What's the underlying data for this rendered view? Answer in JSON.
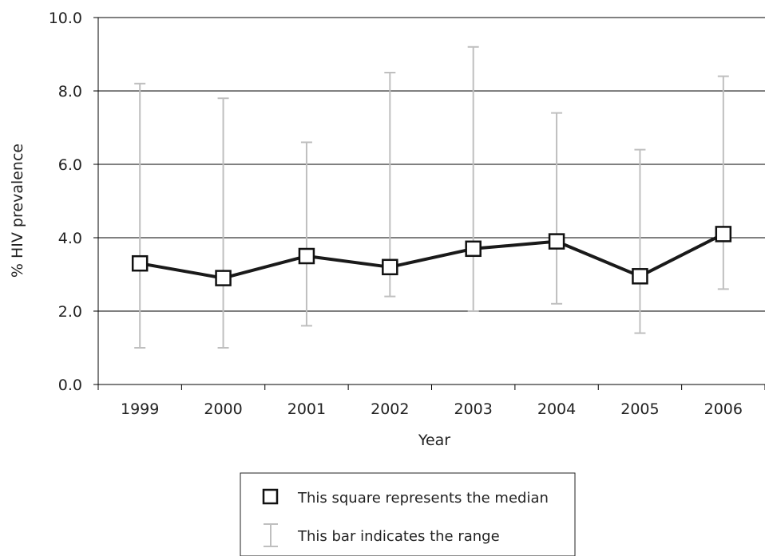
{
  "chart_data": {
    "type": "line",
    "title": "",
    "xlabel": "Year",
    "ylabel": "% HIV prevalence",
    "categories": [
      "1999",
      "2000",
      "2001",
      "2002",
      "2003",
      "2004",
      "2005",
      "2006"
    ],
    "y_ticks": [
      "0.0",
      "2.0",
      "4.0",
      "6.0",
      "8.0",
      "10.0"
    ],
    "ylim": [
      0,
      10
    ],
    "grid": "horizontal",
    "series": [
      {
        "name": "median",
        "values": [
          3.3,
          2.9,
          3.5,
          3.2,
          3.7,
          3.9,
          2.95,
          4.1
        ],
        "range_min": [
          1.0,
          1.0,
          1.6,
          2.4,
          2.0,
          2.2,
          1.4,
          2.6
        ],
        "range_max": [
          8.2,
          7.8,
          6.6,
          8.5,
          9.2,
          7.4,
          6.4,
          8.4
        ]
      }
    ],
    "legend": {
      "placement": "bottom-center",
      "entries": [
        {
          "symbol": "square-icon",
          "label": "This square represents the median"
        },
        {
          "symbol": "error-bar-icon",
          "label": "This bar indicates the range"
        }
      ]
    },
    "colors": {
      "median_line": "#1a1a1a",
      "range_bar": "#bfbfbf",
      "grid": "#000000"
    }
  }
}
